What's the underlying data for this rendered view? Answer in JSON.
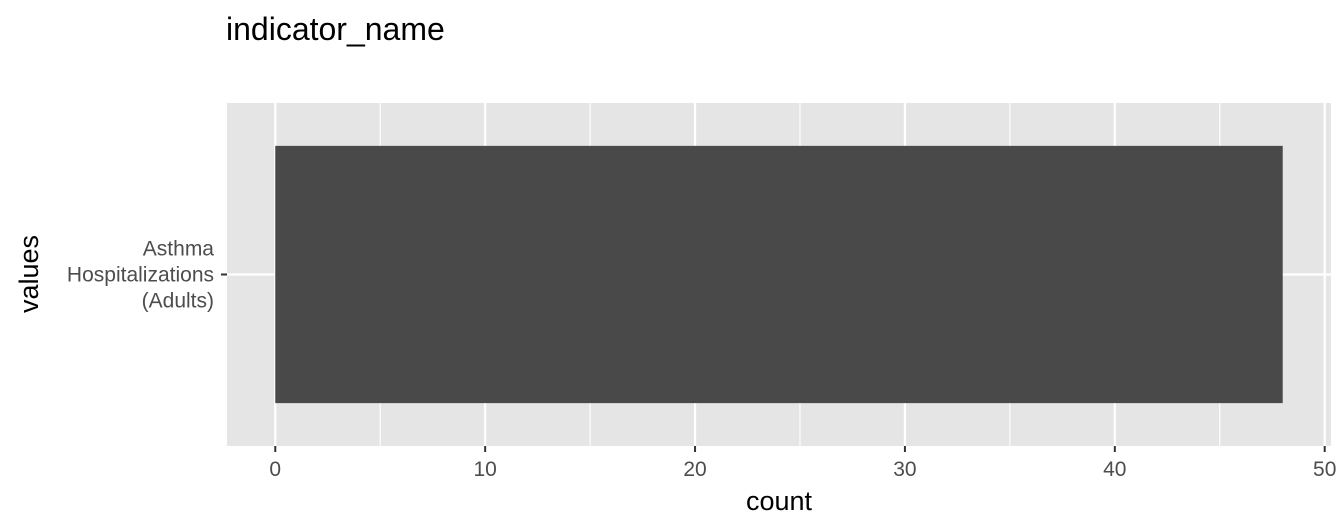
{
  "chart_data": {
    "type": "bar",
    "orientation": "horizontal",
    "title": "indicator_name",
    "xlabel": "count",
    "ylabel": "values",
    "categories": [
      "Asthma\nHospitalizations\n(Adults)"
    ],
    "values": [
      48
    ],
    "xlim": [
      -2.3,
      50.3
    ],
    "x_ticks": [
      0,
      10,
      20,
      30,
      40,
      50
    ],
    "x_minor_ticks": [
      5,
      15,
      25,
      35,
      45
    ],
    "grid": true,
    "legend": "none"
  },
  "colors": {
    "panel_background": "#e5e5e5",
    "grid_line": "#ffffff",
    "bar_fill": "#494949",
    "axis_text": "#4d4d4d",
    "axis_title": "#000000",
    "tick_mark": "#333333"
  }
}
